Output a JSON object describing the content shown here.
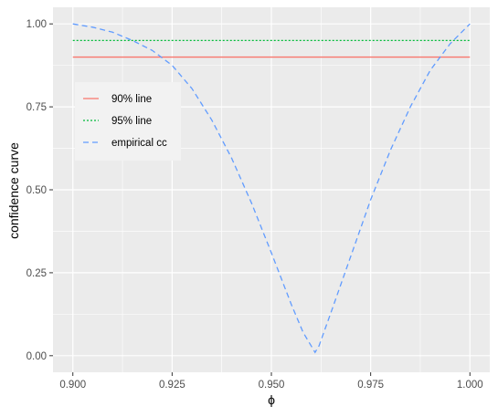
{
  "chart_data": {
    "type": "line",
    "title": "",
    "xlabel": "ϕ",
    "ylabel": "confidence curve",
    "xlim": [
      0.9,
      1.0
    ],
    "ylim": [
      0,
      1
    ],
    "x_ticks": [
      0.9,
      0.925,
      0.95,
      0.975,
      1.0
    ],
    "x_tick_labels": [
      "0.900",
      "0.925",
      "0.950",
      "0.975",
      "1.000"
    ],
    "y_ticks": [
      0,
      0.25,
      0.5,
      0.75,
      1.0
    ],
    "y_tick_labels": [
      "0.00",
      "0.25",
      "0.50",
      "0.75",
      "1.00"
    ],
    "grid": true,
    "legend_position": "top-left",
    "series": [
      {
        "name": "90% line",
        "color": "#F8766D",
        "dash": "solid",
        "x": [
          0.9,
          1.0
        ],
        "y": [
          0.9,
          0.9
        ]
      },
      {
        "name": "95% line",
        "color": "#00BA38",
        "dash": "dotted",
        "x": [
          0.9,
          1.0
        ],
        "y": [
          0.95,
          0.95
        ]
      },
      {
        "name": "empirical cc",
        "color": "#619CFF",
        "dash": "dashed",
        "x": [
          0.9,
          0.905,
          0.91,
          0.915,
          0.92,
          0.925,
          0.93,
          0.935,
          0.94,
          0.945,
          0.95,
          0.955,
          0.958,
          0.961,
          0.962,
          0.965,
          0.97,
          0.975,
          0.98,
          0.985,
          0.99,
          0.995,
          1.0
        ],
        "y": [
          1.0,
          0.99,
          0.975,
          0.95,
          0.92,
          0.875,
          0.805,
          0.71,
          0.595,
          0.46,
          0.31,
          0.155,
          0.07,
          0.01,
          0.03,
          0.13,
          0.3,
          0.47,
          0.62,
          0.75,
          0.86,
          0.94,
          1.0
        ]
      }
    ]
  }
}
